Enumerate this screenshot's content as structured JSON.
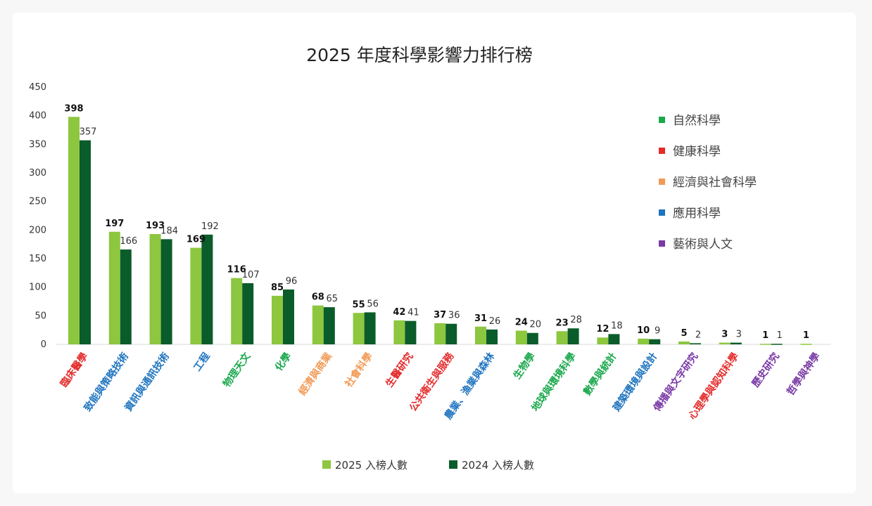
{
  "chart_data": {
    "type": "bar",
    "title": "2025 年度科學影響力排行榜",
    "ylim": [
      0,
      450
    ],
    "yticks": [
      0,
      50,
      100,
      150,
      200,
      250,
      300,
      350,
      400,
      450
    ],
    "grid": false,
    "legend_position": "bottom",
    "categories": [
      {
        "label": "臨床醫學",
        "field": "健康科學"
      },
      {
        "label": "致能與策略技術",
        "field": "應用科學"
      },
      {
        "label": "資訊與通訊技術",
        "field": "應用科學"
      },
      {
        "label": "工程",
        "field": "應用科學"
      },
      {
        "label": "物理天文",
        "field": "自然科學"
      },
      {
        "label": "化學",
        "field": "自然科學"
      },
      {
        "label": "經濟與商業",
        "field": "經濟與社會科學"
      },
      {
        "label": "社會科學",
        "field": "經濟與社會科學"
      },
      {
        "label": "生醫研究",
        "field": "健康科學"
      },
      {
        "label": "公共衛生與服務",
        "field": "健康科學"
      },
      {
        "label": "農業、漁業與森林",
        "field": "應用科學"
      },
      {
        "label": "生物學",
        "field": "自然科學"
      },
      {
        "label": "地球與環境科學",
        "field": "自然科學"
      },
      {
        "label": "數學與統計",
        "field": "自然科學"
      },
      {
        "label": "建築環境與設計",
        "field": "應用科學"
      },
      {
        "label": "傳播與文字研究",
        "field": "藝術與人文"
      },
      {
        "label": "心理學與認知科學",
        "field": "健康科學"
      },
      {
        "label": "歷史研究",
        "field": "藝術與人文"
      },
      {
        "label": "哲學與神學",
        "field": "藝術與人文"
      }
    ],
    "series": [
      {
        "name": "2025 入榜人數",
        "color": "#8dc63f",
        "values": [
          398,
          197,
          193,
          169,
          116,
          85,
          68,
          55,
          42,
          37,
          31,
          24,
          23,
          12,
          10,
          5,
          3,
          1,
          1
        ]
      },
      {
        "name": "2024 入榜人數",
        "color": "#0a5c2a",
        "values": [
          357,
          166,
          184,
          192,
          107,
          96,
          65,
          56,
          41,
          36,
          26,
          20,
          28,
          18,
          9,
          2,
          3,
          1,
          null
        ]
      }
    ],
    "field_legend": [
      {
        "name": "自然科學",
        "color": "#1aa84c"
      },
      {
        "name": "健康科學",
        "color": "#e52b2b"
      },
      {
        "name": "經濟與社會科學",
        "color": "#f29a55"
      },
      {
        "name": "應用科學",
        "color": "#1f74bf"
      },
      {
        "name": "藝術與人文",
        "color": "#7a3aa6"
      }
    ]
  }
}
